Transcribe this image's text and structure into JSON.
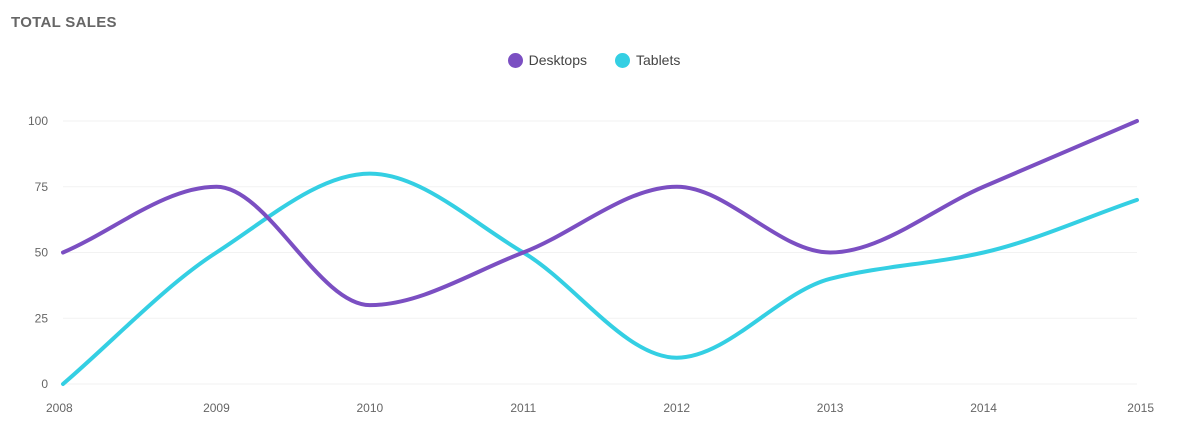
{
  "card": {
    "title": "TOTAL SALES"
  },
  "chart_data": {
    "type": "line",
    "title": "TOTAL SALES",
    "xlabel": "",
    "ylabel": "",
    "x": [
      "2008",
      "2009",
      "2010",
      "2011",
      "2012",
      "2013",
      "2014",
      "2015"
    ],
    "series": [
      {
        "name": "Desktops",
        "color": "#7b4fc2",
        "values": [
          50,
          75,
          30,
          50,
          75,
          50,
          75,
          100
        ]
      },
      {
        "name": "Tablets",
        "color": "#34cfe3",
        "values": [
          0,
          50,
          80,
          50,
          10,
          40,
          50,
          70
        ]
      }
    ],
    "ylim": [
      0,
      100
    ],
    "yticks": [
      0,
      25,
      50,
      75,
      100
    ],
    "legend_position": "top-center",
    "grid": "horizontal",
    "curve": "smooth"
  }
}
